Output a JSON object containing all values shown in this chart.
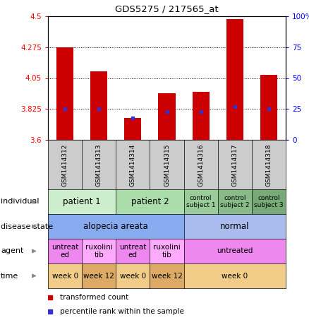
{
  "title": "GDS5275 / 217565_at",
  "samples": [
    "GSM1414312",
    "GSM1414313",
    "GSM1414314",
    "GSM1414315",
    "GSM1414316",
    "GSM1414317",
    "GSM1414318"
  ],
  "transformed_count": [
    4.275,
    4.1,
    3.76,
    3.94,
    3.95,
    4.48,
    4.075
  ],
  "percentile_rank": [
    25,
    25,
    18,
    23,
    23,
    27,
    25
  ],
  "ylim_left": [
    3.6,
    4.5
  ],
  "ylim_right": [
    0,
    100
  ],
  "yticks_left": [
    3.6,
    3.825,
    4.05,
    4.275,
    4.5
  ],
  "yticks_right": [
    0,
    25,
    50,
    75,
    100
  ],
  "ytick_labels_left": [
    "3.6",
    "3.825",
    "4.05",
    "4.275",
    "4.5"
  ],
  "ytick_labels_right": [
    "0",
    "25",
    "50",
    "75",
    "100%"
  ],
  "bar_color": "#cc0000",
  "dot_color": "#3333cc",
  "individual_data": [
    {
      "label": "patient 1",
      "span": [
        0,
        2
      ],
      "color": "#cceecc",
      "fontsize": 8.5
    },
    {
      "label": "patient 2",
      "span": [
        2,
        4
      ],
      "color": "#aaddaa",
      "fontsize": 8.5
    },
    {
      "label": "control\nsubject 1",
      "span": [
        4,
        5
      ],
      "color": "#99cc99",
      "fontsize": 6.5
    },
    {
      "label": "control\nsubject 2",
      "span": [
        5,
        6
      ],
      "color": "#88bb88",
      "fontsize": 6.5
    },
    {
      "label": "control\nsubject 3",
      "span": [
        6,
        7
      ],
      "color": "#77aa77",
      "fontsize": 6.5
    }
  ],
  "disease_data": [
    {
      "label": "alopecia areata",
      "span": [
        0,
        4
      ],
      "color": "#88aaee",
      "fontsize": 8.5
    },
    {
      "label": "normal",
      "span": [
        4,
        7
      ],
      "color": "#aabbee",
      "fontsize": 8.5
    }
  ],
  "agent_data": [
    {
      "label": "untreat\ned",
      "span": [
        0,
        1
      ],
      "color": "#ee88ee",
      "fontsize": 7.5
    },
    {
      "label": "ruxolini\ntib",
      "span": [
        1,
        2
      ],
      "color": "#ffaaff",
      "fontsize": 7.5
    },
    {
      "label": "untreat\ned",
      "span": [
        2,
        3
      ],
      "color": "#ee88ee",
      "fontsize": 7.5
    },
    {
      "label": "ruxolini\ntib",
      "span": [
        3,
        4
      ],
      "color": "#ffaaff",
      "fontsize": 7.5
    },
    {
      "label": "untreated",
      "span": [
        4,
        7
      ],
      "color": "#ee88ee",
      "fontsize": 7.5
    }
  ],
  "time_data": [
    {
      "label": "week 0",
      "span": [
        0,
        1
      ],
      "color": "#f0cc88",
      "fontsize": 7.5
    },
    {
      "label": "week 12",
      "span": [
        1,
        2
      ],
      "color": "#ddaa66",
      "fontsize": 7.5
    },
    {
      "label": "week 0",
      "span": [
        2,
        3
      ],
      "color": "#f0cc88",
      "fontsize": 7.5
    },
    {
      "label": "week 12",
      "span": [
        3,
        4
      ],
      "color": "#ddaa66",
      "fontsize": 7.5
    },
    {
      "label": "week 0",
      "span": [
        4,
        7
      ],
      "color": "#f0cc88",
      "fontsize": 7.5
    }
  ],
  "sample_box_color": "#cccccc",
  "row_label_fontsize": 8,
  "legend_items": [
    {
      "color": "#cc0000",
      "label": "transformed count"
    },
    {
      "color": "#3333cc",
      "label": "percentile rank within the sample"
    }
  ]
}
